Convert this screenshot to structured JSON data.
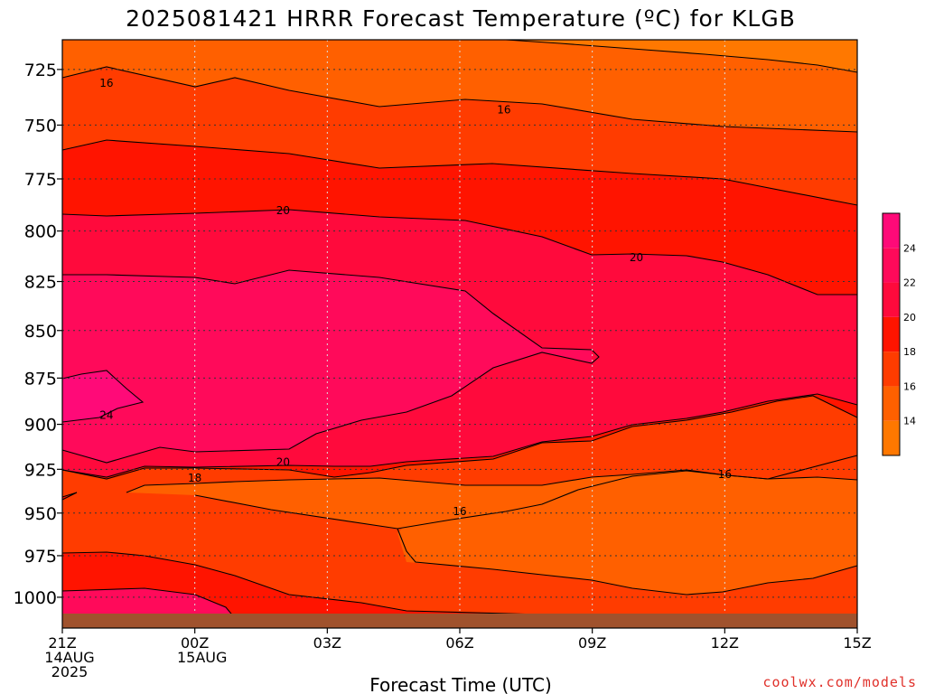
{
  "chart_data": {
    "type": "heatmap",
    "title": "2025081421 HRRR Forecast Temperature (ºC) for KLGB",
    "xlabel": "Forecast Time (UTC)",
    "ylabel": "",
    "x_ticks": [
      {
        "hour": 0,
        "lines": [
          "21Z",
          "14AUG",
          "2025"
        ]
      },
      {
        "hour": 3,
        "lines": [
          "00Z",
          "15AUG"
        ]
      },
      {
        "hour": 6,
        "lines": [
          "03Z"
        ]
      },
      {
        "hour": 9,
        "lines": [
          "06Z"
        ]
      },
      {
        "hour": 12,
        "lines": [
          "09Z"
        ]
      },
      {
        "hour": 15,
        "lines": [
          "12Z"
        ]
      },
      {
        "hour": 18,
        "lines": [
          "15Z"
        ]
      }
    ],
    "x_range_hours": [
      0,
      18
    ],
    "y_ticks": [
      725,
      750,
      775,
      800,
      825,
      850,
      875,
      900,
      925,
      950,
      975,
      1000
    ],
    "y_range_hpa": [
      712,
      1010
    ],
    "y_scale": "log-pressure",
    "surface_pressure_hpa": 1010,
    "grid": true,
    "colorbar": {
      "ticks": [
        14,
        16,
        18,
        20,
        22,
        24
      ],
      "colors": [
        "#ff7800",
        "#ff6000",
        "#ff3c00",
        "#ff1400",
        "#ff0a3c",
        "#ff0a5a",
        "#ff0a78"
      ]
    },
    "contour_labels": [
      {
        "text": "16",
        "hour": 1.0,
        "hpa": 731
      },
      {
        "text": "16",
        "hour": 10.0,
        "hpa": 743
      },
      {
        "text": "20",
        "hour": 5.0,
        "hpa": 790
      },
      {
        "text": "20",
        "hour": 13.0,
        "hpa": 813
      },
      {
        "text": "24",
        "hour": 1.0,
        "hpa": 895
      },
      {
        "text": "20",
        "hour": 5.0,
        "hpa": 921
      },
      {
        "text": "18",
        "hour": 3.0,
        "hpa": 930
      },
      {
        "text": "16",
        "hour": 15.0,
        "hpa": 928
      },
      {
        "text": "16",
        "hour": 9.0,
        "hpa": 949
      }
    ]
  },
  "credit": "coolwx.com/models"
}
